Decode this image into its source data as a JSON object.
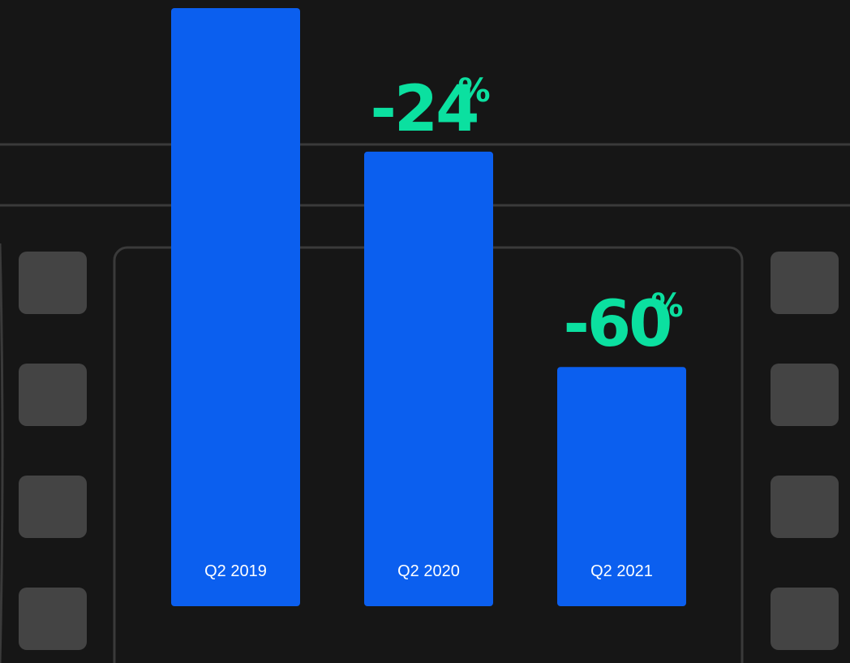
{
  "colors": {
    "background": "#161616",
    "bar": "#0b5fef",
    "change_label": "#0be0a0",
    "category_label": "#ffffff",
    "film_strip": "#444444",
    "frame_line": "#3a3a3a"
  },
  "chart_data": {
    "type": "bar",
    "title": "",
    "xlabel": "",
    "ylabel": "",
    "ylim": [
      0,
      100
    ],
    "grid": false,
    "legend": "none",
    "categories": [
      "Q2 2019",
      "Q2 2020",
      "Q2 2021"
    ],
    "values": [
      100,
      76,
      40
    ],
    "change_labels": [
      null,
      {
        "number": "-24",
        "unit": "%"
      },
      {
        "number": "-60",
        "unit": "%"
      }
    ]
  }
}
